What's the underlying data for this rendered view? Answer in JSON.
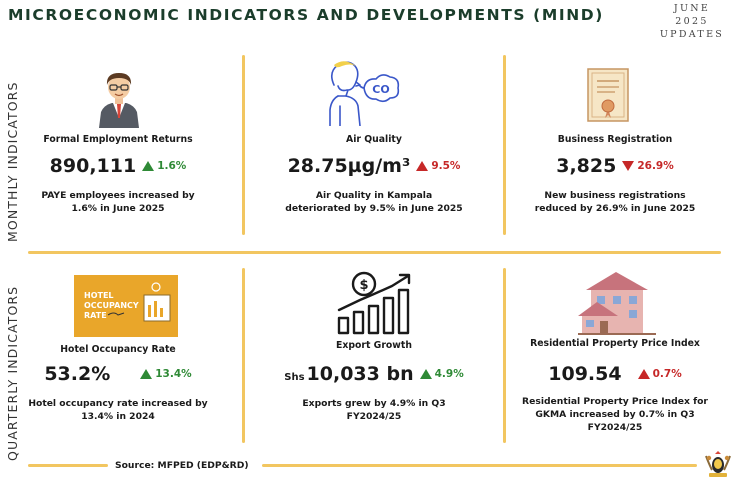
{
  "header": {
    "title": "MICROECONOMIC INDICATORS AND DEVELOPMENTS (MIND)",
    "period_month": "JUNE",
    "period_year": "2025",
    "period_suffix": "UPDATES"
  },
  "sections": {
    "monthly_label": "MONTHLY INDICATORS",
    "quarterly_label": "QUARTERLY INDICATORS"
  },
  "monthly": [
    {
      "icon": "business-person-icon",
      "name": "Formal Employment Returns",
      "value": "890,111",
      "change": "1.6%",
      "direction": "up",
      "desc_line1": "PAYE employees increased by",
      "desc_line2": "1.6% in June 2025"
    },
    {
      "icon": "air-quality-person-co-icon",
      "icon_text": "CO",
      "name": "Air Quality",
      "value": "28.75µg/m³",
      "change": "9.5%",
      "direction": "up",
      "desc_line1": "Air Quality in Kampala",
      "desc_line2": "deteriorated by 9.5% in June 2025"
    },
    {
      "icon": "certificate-icon",
      "name": "Business Registration",
      "value": "3,825",
      "change": "26.9%",
      "direction": "down",
      "desc_line1": "New business registrations",
      "desc_line2": "reduced by 26.9% in June 2025"
    }
  ],
  "quarterly": [
    {
      "icon": "hotel-occupancy-sign-icon",
      "icon_text_1": "HOTEL",
      "icon_text_2": "OCCUPANCY",
      "icon_text_3": "RATE",
      "name": "Hotel Occupancy Rate",
      "value": "53.2%",
      "change": "13.4%",
      "direction": "up",
      "desc_line1": "Hotel occupancy rate increased by",
      "desc_line2": "13.4% in 2024"
    },
    {
      "icon": "export-growth-chart-icon",
      "name": "Export Growth",
      "prefix": "Shs",
      "value": "10,033 bn",
      "change": "4.9%",
      "direction": "up",
      "desc_line1": "Exports grew by 4.9% in Q3",
      "desc_line2": "FY2024/25"
    },
    {
      "icon": "houses-icon",
      "name": "Residential Property Price Index",
      "value": "109.54",
      "change": "0.7%",
      "direction": "up",
      "desc_line1": "Residential Property Price Index for",
      "desc_line2": "GKMA increased by 0.7% in Q3",
      "desc_line3": "FY2024/25"
    }
  ],
  "footer": {
    "source": "Source: MFPED (EDP&RD)",
    "seal_icon": "coat-of-arms-icon"
  },
  "colors": {
    "title": "#1b3d2b",
    "divider": "#f2c660",
    "up": "#2f8a36",
    "down": "#c62828",
    "hotel_sign": "#e9a62a"
  }
}
